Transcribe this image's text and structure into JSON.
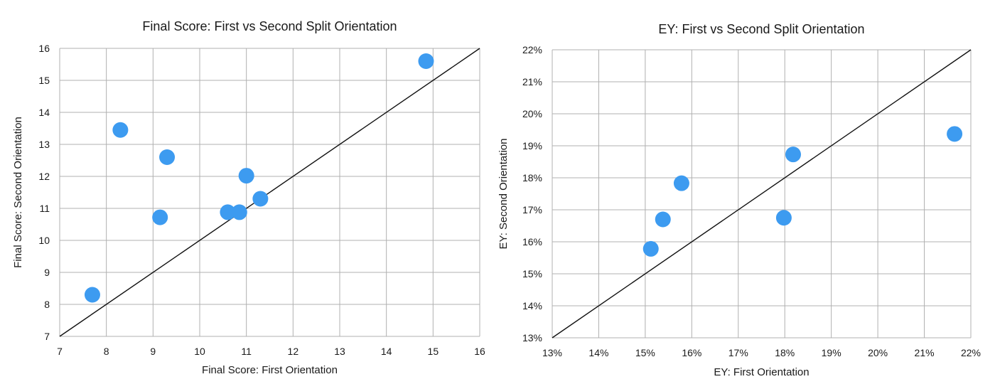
{
  "chart_data": [
    {
      "type": "scatter",
      "title": "Final Score: First vs Second Split Orientation",
      "xlabel": "Final Score: First Orientation",
      "ylabel": "Final Score: Second Orientation",
      "xlim": [
        7,
        16
      ],
      "ylim": [
        7,
        16
      ],
      "xticks": [
        "7",
        "8",
        "9",
        "10",
        "11",
        "12",
        "13",
        "14",
        "15",
        "16"
      ],
      "yticks": [
        "7",
        "8",
        "9",
        "10",
        "11",
        "12",
        "13",
        "14",
        "15",
        "16"
      ],
      "grid": true,
      "reference_line": "y = x",
      "point_color": "#3d9bf0",
      "points": [
        {
          "x": 7.7,
          "y": 8.3
        },
        {
          "x": 8.3,
          "y": 13.45
        },
        {
          "x": 9.15,
          "y": 10.72
        },
        {
          "x": 9.3,
          "y": 12.6
        },
        {
          "x": 10.6,
          "y": 10.88
        },
        {
          "x": 10.85,
          "y": 10.88
        },
        {
          "x": 11.0,
          "y": 12.02
        },
        {
          "x": 11.3,
          "y": 11.3
        },
        {
          "x": 14.85,
          "y": 15.6
        }
      ]
    },
    {
      "type": "scatter",
      "title": "EY: First vs Second Split Orientation",
      "xlabel": "EY: First Orientation",
      "ylabel": "EY: Second Orientation",
      "xlim": [
        13,
        22
      ],
      "ylim": [
        13,
        22
      ],
      "xticks": [
        "13%",
        "14%",
        "15%",
        "16%",
        "17%",
        "18%",
        "19%",
        "20%",
        "21%",
        "22%"
      ],
      "yticks": [
        "13%",
        "14%",
        "15%",
        "16%",
        "17%",
        "18%",
        "19%",
        "20%",
        "21%",
        "22%"
      ],
      "grid": true,
      "reference_line": "y = x",
      "point_color": "#3d9bf0",
      "points": [
        {
          "x": 15.12,
          "y": 15.78
        },
        {
          "x": 15.38,
          "y": 16.7
        },
        {
          "x": 15.78,
          "y": 17.83
        },
        {
          "x": 17.98,
          "y": 16.75
        },
        {
          "x": 18.18,
          "y": 18.73
        },
        {
          "x": 21.65,
          "y": 19.37
        }
      ]
    }
  ]
}
